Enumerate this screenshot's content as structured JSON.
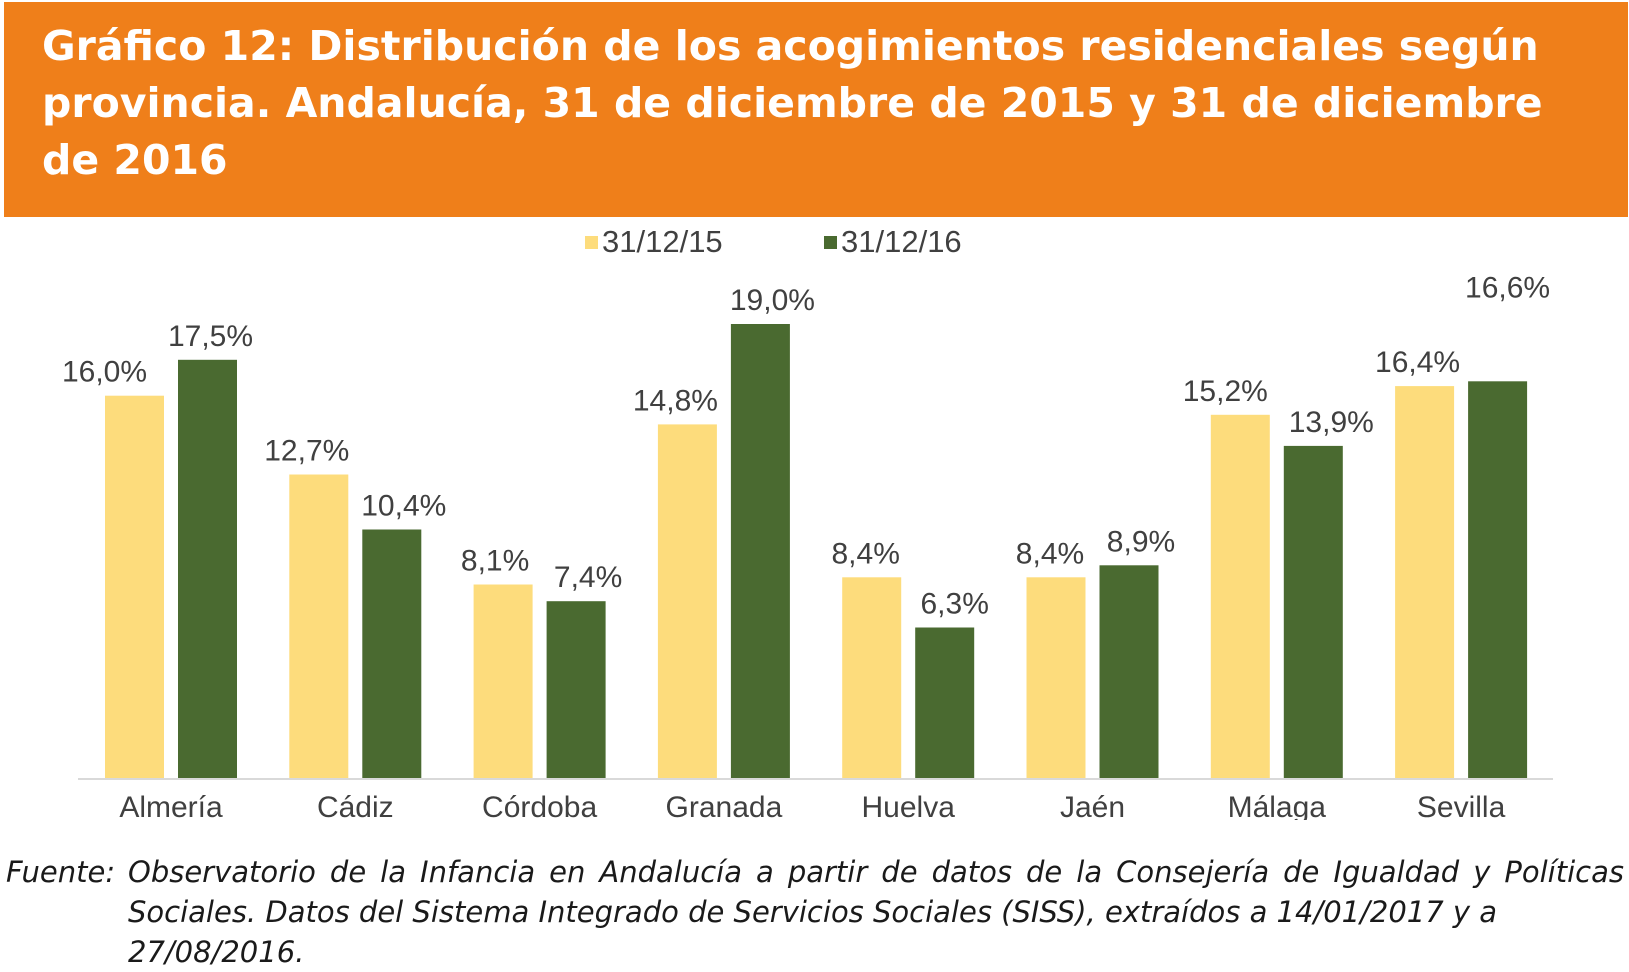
{
  "title": "Gráfico 12: Distribución de los acogimientos residenciales según provincia. Andalucía, 31 de diciembre de 2015 y 31 de diciembre de 2016",
  "colors": {
    "header_background": "#ef7f1a",
    "header_text": "#ffffff",
    "series_2015": "#fddc7c",
    "series_2016": "#4a6a30",
    "labels": "#404040",
    "axis": "#d9d9d9"
  },
  "legend": {
    "item_1": "31/12/15",
    "item_2": "31/12/16"
  },
  "chart_data": {
    "type": "bar",
    "categories": [
      "Almería",
      "Cádiz",
      "Córdoba",
      "Granada",
      "Huelva",
      "Jaén",
      "Málaga",
      "Sevilla"
    ],
    "series": [
      {
        "name": "31/12/15",
        "values": [
          16.0,
          12.7,
          8.1,
          14.8,
          8.4,
          8.4,
          15.2,
          16.4
        ],
        "labels": [
          "16,0%",
          "12,7%",
          "8,1%",
          "14,8%",
          "8,4%",
          "8,4%",
          "15,2%",
          "16,4%"
        ]
      },
      {
        "name": "31/12/16",
        "values": [
          17.5,
          10.4,
          7.4,
          19.0,
          6.3,
          8.9,
          13.9,
          16.6
        ],
        "labels": [
          "17,5%",
          "10,4%",
          "7,4%",
          "19,0%",
          "6,3%",
          "8,9%",
          "13,9%",
          "16,6%"
        ]
      }
    ],
    "unit": "%",
    "ylim": [
      0,
      19.0
    ],
    "grid": false,
    "legend_position": "top-center",
    "xlabel": "",
    "ylabel": ""
  },
  "source": {
    "label": "Fuente:",
    "line1": "Observatorio de la Infancia en Andalucía a partir de datos de la Consejería de Igualdad y Políticas",
    "line2": "Sociales. Datos del Sistema Integrado de Servicios Sociales (SISS), extraídos a 14/01/2017 y a 27/08/2016."
  }
}
